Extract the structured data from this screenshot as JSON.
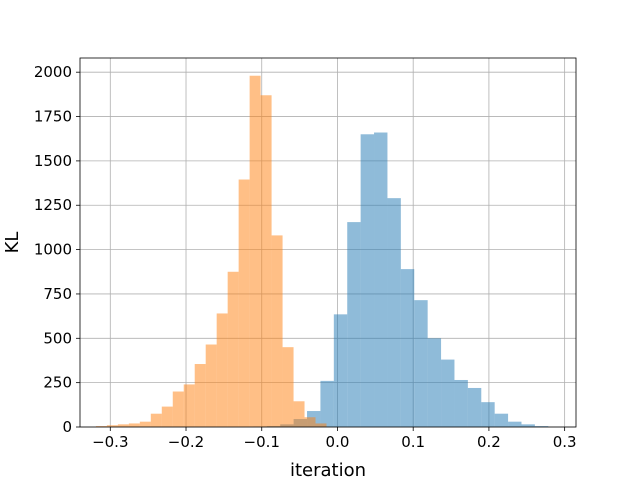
{
  "chart_data": {
    "type": "bar",
    "xlabel": "iteration",
    "ylabel": "KL",
    "xlim": [
      -0.34,
      0.315
    ],
    "ylim": [
      0,
      2080
    ],
    "xticks": [
      -0.3,
      -0.2,
      -0.1,
      0.0,
      0.1,
      0.2,
      0.3
    ],
    "xtick_labels": [
      "−0.3",
      "−0.2",
      "−0.1",
      "0.0",
      "0.1",
      "0.2",
      "0.3"
    ],
    "yticks": [
      0,
      250,
      500,
      750,
      1000,
      1250,
      1500,
      1750,
      2000
    ],
    "ytick_labels": [
      "0",
      "250",
      "500",
      "750",
      "1000",
      "1250",
      "1500",
      "1750",
      "2000"
    ],
    "grid": true,
    "series": [
      {
        "color": "#1f77b4",
        "alpha": 0.5,
        "bin_edges": [
          -0.111,
          -0.0933,
          -0.0756,
          -0.0579,
          -0.0402,
          -0.0225,
          -0.0048,
          0.0129,
          0.0306,
          0.0483,
          0.066,
          0.0837,
          0.1014,
          0.1191,
          0.1368,
          0.1545,
          0.1722,
          0.1899,
          0.2076,
          0.2253,
          0.243,
          0.2607,
          0.2784
        ],
        "counts": [
          2,
          5,
          15,
          45,
          90,
          260,
          635,
          1155,
          1650,
          1660,
          1290,
          890,
          715,
          500,
          380,
          265,
          220,
          140,
          75,
          30,
          15,
          5
        ]
      },
      {
        "color": "#ff7f0e",
        "alpha": 0.5,
        "bin_edges": [
          -0.319,
          -0.3045,
          -0.29,
          -0.2755,
          -0.261,
          -0.2465,
          -0.232,
          -0.2175,
          -0.203,
          -0.1885,
          -0.174,
          -0.1595,
          -0.145,
          -0.1305,
          -0.116,
          -0.1015,
          -0.087,
          -0.0725,
          -0.058,
          -0.0435,
          -0.029,
          -0.0145
        ],
        "counts": [
          5,
          10,
          15,
          20,
          30,
          75,
          115,
          200,
          240,
          355,
          465,
          640,
          875,
          1395,
          1980,
          1870,
          1080,
          450,
          145,
          55,
          20
        ]
      }
    ]
  }
}
